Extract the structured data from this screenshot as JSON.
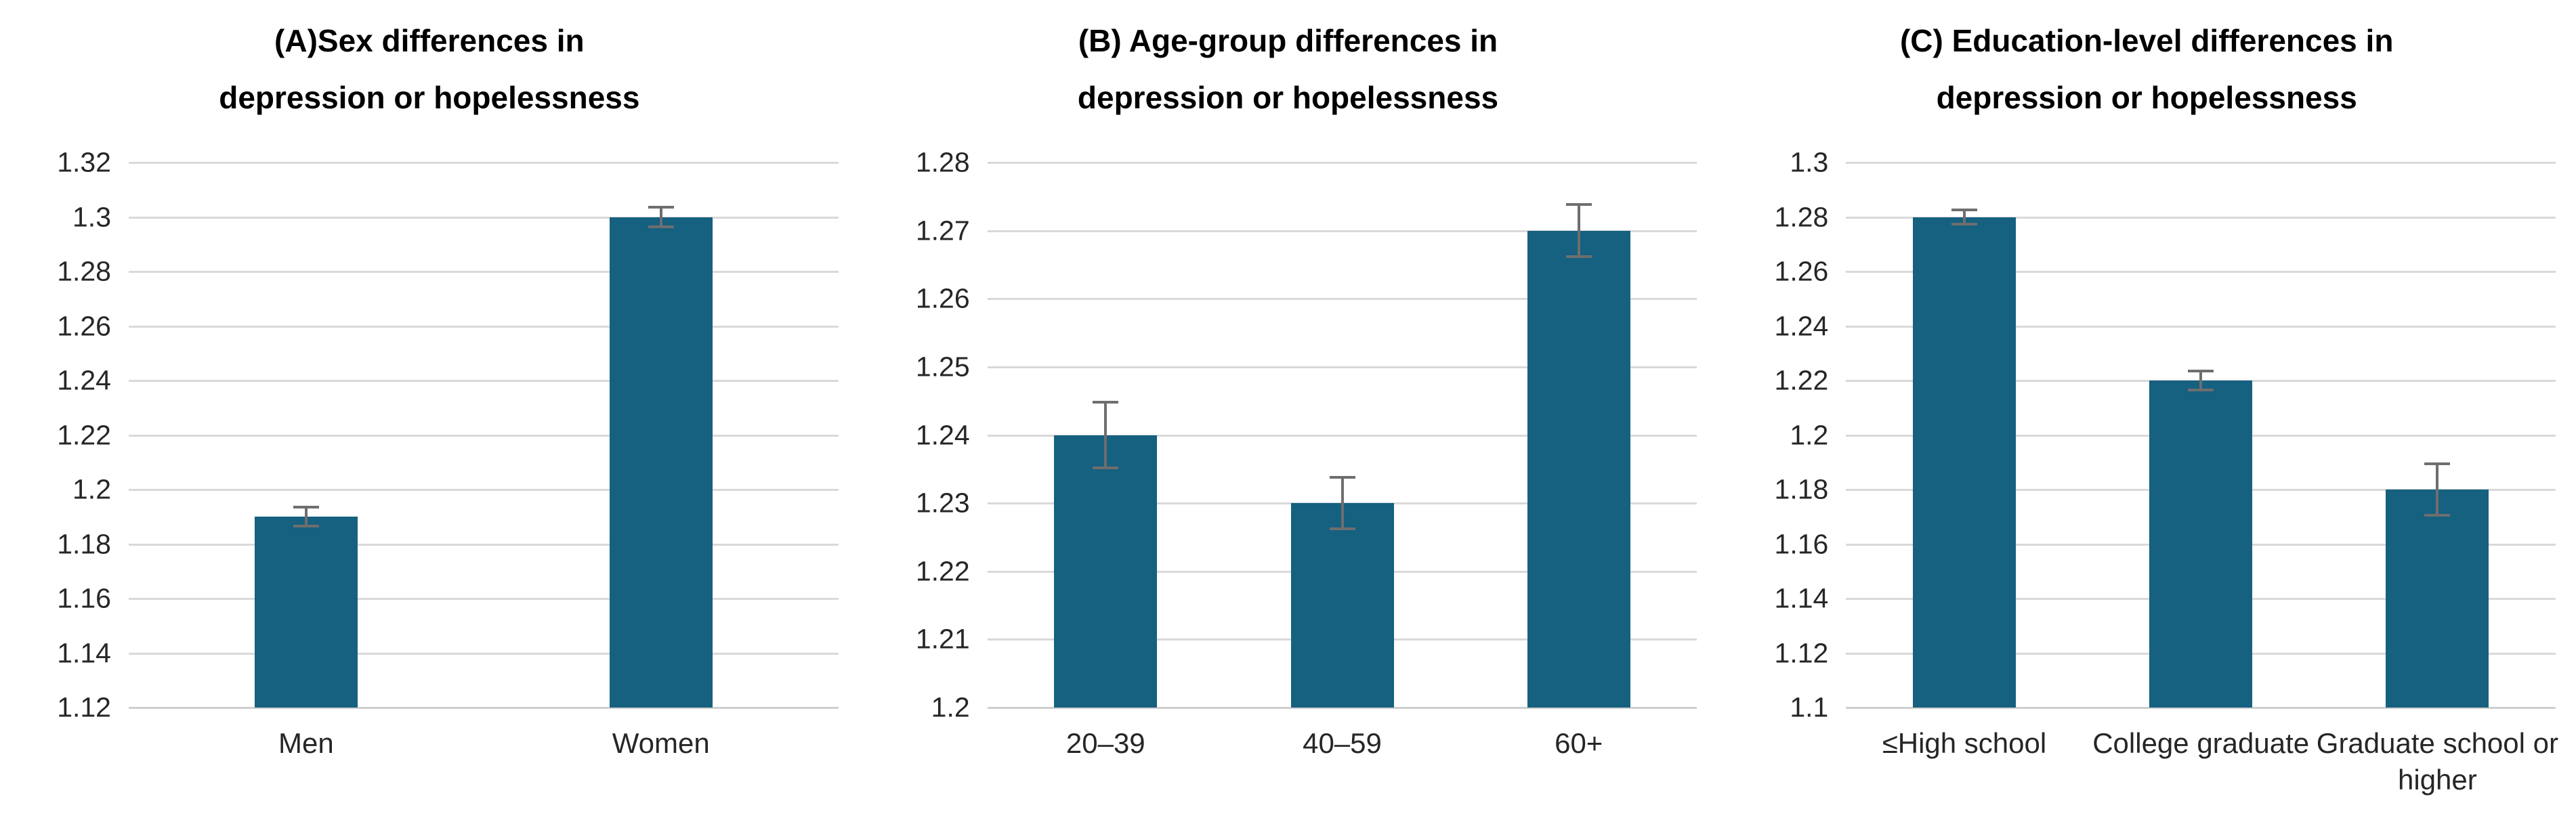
{
  "figure": {
    "background": "#ffffff",
    "description_visible_panels": [
      "A",
      "B",
      "C"
    ]
  },
  "colors": {
    "bar": "#166080",
    "gridline": "#d9d9d9",
    "error_bar": "#6e6e6e",
    "tick_text": "#262626",
    "title_text": "#000000"
  },
  "chart_data": [
    {
      "type": "bar",
      "panel": "A",
      "title_lines": [
        "(A)Sex differences in",
        "depression or hopelessness"
      ],
      "categories": [
        "Men",
        "Women"
      ],
      "values": [
        1.19,
        1.3
      ],
      "errors": [
        0.004,
        0.004
      ],
      "ylim": [
        1.12,
        1.32
      ],
      "yticks": [
        {
          "value": 1.32,
          "label": "1.32"
        },
        {
          "value": 1.3,
          "label": "1.3"
        },
        {
          "value": 1.28,
          "label": "1.28"
        },
        {
          "value": 1.26,
          "label": "1.26"
        },
        {
          "value": 1.24,
          "label": "1.24"
        },
        {
          "value": 1.22,
          "label": "1.22"
        },
        {
          "value": 1.2,
          "label": "1.2"
        },
        {
          "value": 1.18,
          "label": "1.18"
        },
        {
          "value": 1.16,
          "label": "1.16"
        },
        {
          "value": 1.14,
          "label": "1.14"
        },
        {
          "value": 1.12,
          "label": "1.12"
        }
      ],
      "xlabel": "",
      "ylabel": "",
      "grid": true,
      "legend": "none"
    },
    {
      "type": "bar",
      "panel": "B",
      "title_lines": [
        "(B) Age-group differences in",
        "depression or hopelessness"
      ],
      "categories": [
        "20–39",
        "40–59",
        "60+"
      ],
      "values": [
        1.24,
        1.23,
        1.27
      ],
      "errors": [
        0.005,
        0.004,
        0.004
      ],
      "ylim": [
        1.2,
        1.28
      ],
      "yticks": [
        {
          "value": 1.28,
          "label": "1.28"
        },
        {
          "value": 1.27,
          "label": "1.27"
        },
        {
          "value": 1.26,
          "label": "1.26"
        },
        {
          "value": 1.25,
          "label": "1.25"
        },
        {
          "value": 1.24,
          "label": "1.24"
        },
        {
          "value": 1.23,
          "label": "1.23"
        },
        {
          "value": 1.22,
          "label": "1.22"
        },
        {
          "value": 1.21,
          "label": "1.21"
        },
        {
          "value": 1.2,
          "label": "1.2"
        }
      ],
      "xlabel": "",
      "ylabel": "",
      "grid": true,
      "legend": "none"
    },
    {
      "type": "bar",
      "panel": "C",
      "title_lines": [
        "(C) Education-level differences in",
        "depression or hopelessness"
      ],
      "categories": [
        "≤High school",
        "College graduate",
        "Graduate school or higher"
      ],
      "values": [
        1.28,
        1.22,
        1.18
      ],
      "errors": [
        0.003,
        0.004,
        0.01
      ],
      "ylim": [
        1.1,
        1.3
      ],
      "yticks": [
        {
          "value": 1.3,
          "label": "1.3"
        },
        {
          "value": 1.28,
          "label": "1.28"
        },
        {
          "value": 1.26,
          "label": "1.26"
        },
        {
          "value": 1.24,
          "label": "1.24"
        },
        {
          "value": 1.22,
          "label": "1.22"
        },
        {
          "value": 1.2,
          "label": "1.2"
        },
        {
          "value": 1.18,
          "label": "1.18"
        },
        {
          "value": 1.16,
          "label": "1.16"
        },
        {
          "value": 1.14,
          "label": "1.14"
        },
        {
          "value": 1.12,
          "label": "1.12"
        },
        {
          "value": 1.1,
          "label": "1.1"
        }
      ],
      "xlabel": "",
      "ylabel": "",
      "grid": true,
      "legend": "none"
    }
  ]
}
